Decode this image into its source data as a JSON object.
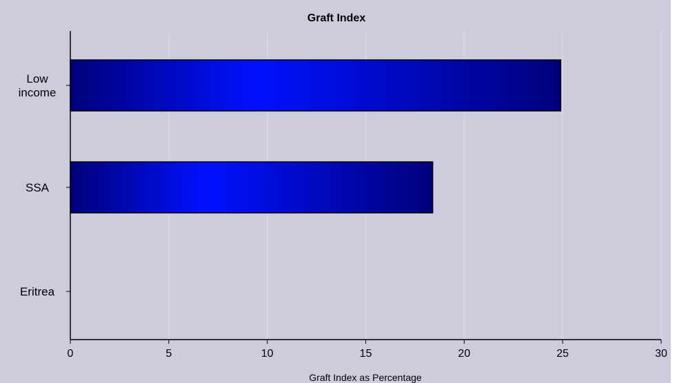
{
  "chart_data": {
    "type": "bar",
    "orientation": "horizontal",
    "title": "Graft Index",
    "xlabel": "Graft Index as Percentage",
    "ylabel": "",
    "categories": [
      "Low income",
      "SSA",
      "Eritrea"
    ],
    "category_label_lines": [
      [
        "Low",
        "income"
      ],
      [
        "SSA"
      ],
      [
        "Eritrea"
      ]
    ],
    "values": [
      24.9,
      18.4,
      0
    ],
    "xlim": [
      0,
      30
    ],
    "xticks": [
      0,
      5,
      10,
      15,
      20,
      25,
      30
    ],
    "grid": true,
    "legend": "none",
    "colors": {
      "background": "#ccccdc",
      "bar_dark": "#00007a",
      "bar_light": "#0011ff",
      "grid": "#dcdce6",
      "axis": "#000000"
    }
  }
}
